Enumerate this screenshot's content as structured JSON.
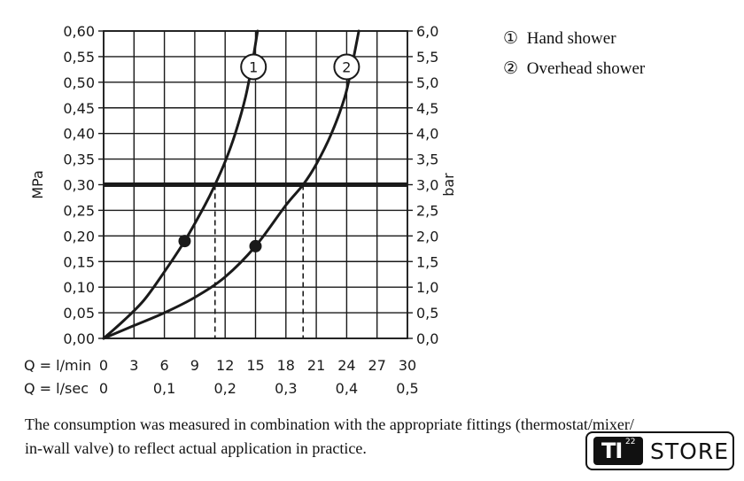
{
  "chart_data": {
    "type": "line",
    "y_left": {
      "label": "MPa",
      "ticks": [
        "0,00",
        "0,05",
        "0,10",
        "0,15",
        "0,20",
        "0,25",
        "0,30",
        "0,35",
        "0,40",
        "0,45",
        "0,50",
        "0,55",
        "0,60"
      ],
      "range": [
        0,
        0.6
      ]
    },
    "y_right": {
      "label": "bar",
      "ticks": [
        "0,0",
        "0,5",
        "1,0",
        "1,5",
        "2,0",
        "2,5",
        "3,0",
        "3,5",
        "4,0",
        "4,5",
        "5,0",
        "5,5",
        "6,0"
      ],
      "range": [
        0,
        6.0
      ]
    },
    "x_lmin": {
      "label": "Q = l/min",
      "ticks": [
        "0",
        "3",
        "6",
        "9",
        "12",
        "15",
        "18",
        "21",
        "24",
        "27",
        "30"
      ],
      "range": [
        0,
        30
      ]
    },
    "x_lsec": {
      "label": "Q = l/sec",
      "ticks": [
        "0",
        "0,1",
        "0,2",
        "0,3",
        "0,4",
        "0,5"
      ],
      "values": [
        0,
        0.1,
        0.2,
        0.3,
        0.4,
        0.5
      ]
    },
    "grid": true,
    "reference_line": {
      "y": 0.3
    },
    "series": [
      {
        "name": "Hand shower",
        "marker_label": "1",
        "points": [
          [
            0,
            0
          ],
          [
            2,
            0.035
          ],
          [
            4,
            0.075
          ],
          [
            6,
            0.13
          ],
          [
            8,
            0.19
          ],
          [
            10,
            0.26
          ],
          [
            11,
            0.3
          ],
          [
            12,
            0.345
          ],
          [
            13,
            0.4
          ],
          [
            14,
            0.47
          ],
          [
            14.7,
            0.54
          ],
          [
            15.2,
            0.6
          ]
        ],
        "highlight": [
          8,
          0.19
        ],
        "drop_x": 11
      },
      {
        "name": "Overhead shower",
        "marker_label": "2",
        "points": [
          [
            0,
            0
          ],
          [
            3,
            0.025
          ],
          [
            6,
            0.05
          ],
          [
            9,
            0.08
          ],
          [
            12,
            0.12
          ],
          [
            15,
            0.18
          ],
          [
            18,
            0.26
          ],
          [
            19.7,
            0.3
          ],
          [
            21,
            0.34
          ],
          [
            22.5,
            0.4
          ],
          [
            23.8,
            0.47
          ],
          [
            24.5,
            0.53
          ],
          [
            25.2,
            0.6
          ]
        ],
        "highlight": [
          15,
          0.18
        ],
        "drop_x": 19.7
      }
    ]
  },
  "legend": [
    {
      "num": "①",
      "label": "Hand shower"
    },
    {
      "num": "②",
      "label": "Overhead shower"
    }
  ],
  "note": {
    "line1": "The consumption was measured in combination with the appropriate fittings (thermostat/mixer/",
    "line2": "in-wall valve) to reflect actual application in practice."
  },
  "store_badge": {
    "mark": "TI",
    "superscript": "22",
    "label": "STORE"
  }
}
